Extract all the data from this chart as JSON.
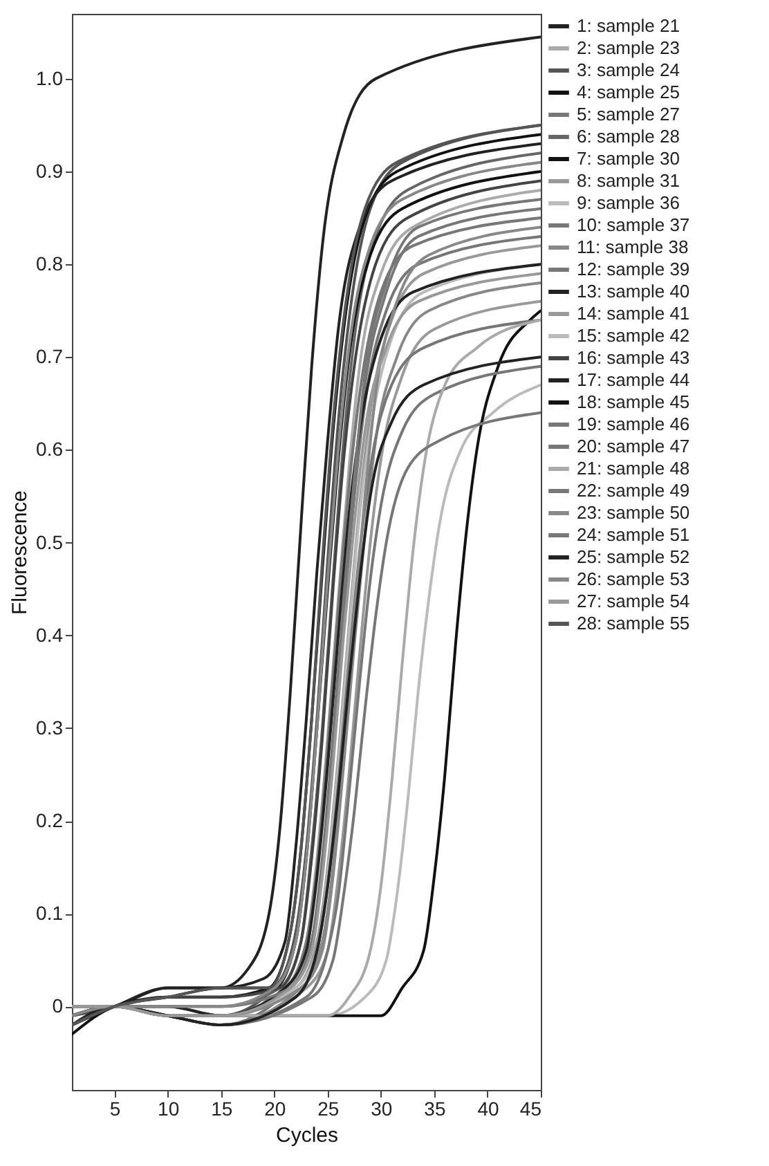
{
  "chart_data": {
    "type": "line",
    "xlabel": "Cycles",
    "ylabel": "Fluorescence",
    "xlim": [
      1,
      45
    ],
    "ylim": [
      -0.09,
      1.07
    ],
    "xticks": [
      5,
      10,
      15,
      20,
      25,
      30,
      35,
      40,
      45
    ],
    "yticks": [
      0,
      0.1,
      0.2,
      0.3,
      0.4,
      0.5,
      0.6,
      0.7,
      0.8,
      0.9,
      {
        "value": 1,
        "label": "1.0"
      }
    ],
    "legend": "right",
    "series": [
      {
        "name": "1: sample 21",
        "color": "#222222",
        "x": [
          1,
          5,
          10,
          15,
          17.5,
          19.5,
          20.5,
          21.5,
          22.5,
          23.5,
          24.5,
          26.5,
          29.5,
          45
        ],
        "values": [
          -0.01,
          0,
          0.02,
          0.02,
          0.04,
          0.1,
          0.19,
          0.34,
          0.52,
          0.69,
          0.82,
          0.94,
          1.0,
          1.045
        ]
      },
      {
        "name": "2: sample 23",
        "color": "#aaaaaa",
        "x": [
          1,
          5,
          10,
          15,
          21,
          23,
          24,
          25,
          26,
          27,
          28,
          30,
          33,
          45
        ],
        "values": [
          -0.01,
          0,
          0.01,
          0.01,
          0.02,
          0.07,
          0.16,
          0.29,
          0.44,
          0.58,
          0.69,
          0.79,
          0.84,
          0.88
        ]
      },
      {
        "name": "3: sample 24",
        "color": "#555555",
        "x": [
          1,
          5,
          10,
          15,
          20,
          22,
          23,
          24,
          25,
          26,
          27,
          29,
          32,
          45
        ],
        "values": [
          0,
          0,
          -0.01,
          -0.01,
          0.02,
          0.08,
          0.17,
          0.31,
          0.48,
          0.63,
          0.74,
          0.86,
          0.91,
          0.95
        ]
      },
      {
        "name": "4: sample 25",
        "color": "#111111",
        "x": [
          1,
          5,
          10,
          15,
          19.5,
          21.5,
          22.5,
          23.5,
          24.5,
          25.5,
          26.5,
          28.5,
          31.5,
          45
        ],
        "values": [
          -0.02,
          0,
          0.01,
          0.01,
          0.02,
          0.08,
          0.17,
          0.31,
          0.47,
          0.62,
          0.73,
          0.85,
          0.9,
          0.94
        ]
      },
      {
        "name": "5: sample 27",
        "color": "#777777",
        "x": [
          1,
          5,
          10,
          15,
          21.5,
          23.5,
          24.5,
          25.5,
          26.5,
          27.5,
          28.5,
          30.5,
          33.5,
          45
        ],
        "values": [
          0,
          0,
          -0.01,
          -0.02,
          0.02,
          0.07,
          0.15,
          0.28,
          0.43,
          0.57,
          0.67,
          0.77,
          0.83,
          0.86
        ]
      },
      {
        "name": "6: sample 28",
        "color": "#666666",
        "x": [
          1,
          5,
          10,
          15,
          20.5,
          22.5,
          23.5,
          24.5,
          25.5,
          26.5,
          27.5,
          29.5,
          32.5,
          45
        ],
        "values": [
          -0.01,
          0,
          0,
          0,
          0.02,
          0.07,
          0.17,
          0.3,
          0.46,
          0.61,
          0.72,
          0.83,
          0.88,
          0.92
        ]
      },
      {
        "name": "7: sample 30",
        "color": "#111111",
        "x": [
          1,
          5,
          10,
          15,
          20,
          22,
          23,
          24,
          25,
          26,
          27,
          29,
          32,
          45
        ],
        "values": [
          -0.03,
          0,
          0.01,
          0.02,
          0.02,
          0.07,
          0.16,
          0.3,
          0.45,
          0.59,
          0.7,
          0.81,
          0.86,
          0.9
        ]
      },
      {
        "name": "8: sample 31",
        "color": "#999999",
        "x": [
          1,
          5,
          10,
          15,
          22,
          24,
          25,
          26,
          27,
          28,
          29,
          31,
          34,
          45
        ],
        "values": [
          0,
          0,
          -0.01,
          -0.01,
          0.02,
          0.07,
          0.15,
          0.27,
          0.41,
          0.54,
          0.64,
          0.74,
          0.79,
          0.82
        ]
      },
      {
        "name": "9: sample 36",
        "color": "#bbbbbb",
        "x": [
          1,
          5,
          10,
          15,
          20,
          25,
          28.5,
          30.5,
          31.5,
          32.5,
          33.5,
          34.5,
          35.5,
          37.5,
          40.5,
          45
        ],
        "values": [
          0,
          0,
          -0.01,
          -0.01,
          -0.01,
          -0.01,
          0.01,
          0.05,
          0.12,
          0.22,
          0.34,
          0.44,
          0.52,
          0.6,
          0.64,
          0.67
        ]
      },
      {
        "name": "10: sample 37",
        "color": "#777777",
        "x": [
          1,
          5,
          10,
          15,
          21,
          23,
          24,
          25,
          26,
          27,
          28,
          30,
          33,
          45
        ],
        "values": [
          -0.01,
          0,
          0,
          -0.01,
          0.02,
          0.07,
          0.15,
          0.28,
          0.43,
          0.56,
          0.66,
          0.77,
          0.82,
          0.85
        ]
      },
      {
        "name": "11: sample 38",
        "color": "#888888",
        "x": [
          1,
          5,
          10,
          15,
          22.5,
          24.5,
          25.5,
          26.5,
          27.5,
          28.5,
          29.5,
          31.5,
          34.5,
          45
        ],
        "values": [
          0,
          0,
          -0.01,
          -0.02,
          0.02,
          0.06,
          0.14,
          0.26,
          0.39,
          0.51,
          0.61,
          0.7,
          0.75,
          0.78
        ]
      },
      {
        "name": "12: sample 39",
        "color": "#777777",
        "x": [
          1,
          5,
          10,
          15,
          21.5,
          23.5,
          24.5,
          25.5,
          26.5,
          27.5,
          28.5,
          30.5,
          33.5,
          45
        ],
        "values": [
          -0.01,
          0,
          0,
          -0.01,
          0.02,
          0.07,
          0.15,
          0.27,
          0.42,
          0.55,
          0.65,
          0.75,
          0.8,
          0.83
        ]
      },
      {
        "name": "13: sample 40",
        "color": "#222222",
        "x": [
          1,
          5,
          10,
          15,
          19,
          21,
          22,
          23,
          24,
          25,
          26,
          28,
          31,
          45
        ],
        "values": [
          -0.02,
          0,
          0.02,
          0.02,
          0.03,
          0.07,
          0.17,
          0.31,
          0.47,
          0.61,
          0.73,
          0.84,
          0.89,
          0.93
        ]
      },
      {
        "name": "14: sample 41",
        "color": "#999999",
        "x": [
          1,
          5,
          10,
          15,
          23,
          25,
          26,
          27,
          28,
          29,
          30,
          32,
          35,
          45
        ],
        "values": [
          0,
          0,
          -0.01,
          -0.02,
          0.02,
          0.06,
          0.14,
          0.25,
          0.38,
          0.5,
          0.59,
          0.68,
          0.73,
          0.76
        ]
      },
      {
        "name": "15: sample 42",
        "color": "#bbbbbb",
        "x": [
          1,
          5,
          10,
          15,
          22,
          24,
          25,
          26,
          27,
          28,
          29,
          31,
          34,
          45
        ],
        "values": [
          0,
          0,
          -0.01,
          -0.01,
          0.02,
          0.06,
          0.14,
          0.26,
          0.4,
          0.53,
          0.62,
          0.72,
          0.77,
          0.8
        ]
      },
      {
        "name": "16: sample 43",
        "color": "#444444",
        "x": [
          1,
          5,
          10,
          15,
          20.5,
          22.5,
          23.5,
          24.5,
          25.5,
          26.5,
          27.5,
          29.5,
          32.5,
          45
        ],
        "values": [
          -0.01,
          0,
          0.01,
          0.01,
          0.02,
          0.07,
          0.16,
          0.29,
          0.45,
          0.59,
          0.69,
          0.8,
          0.85,
          0.89
        ]
      },
      {
        "name": "17: sample 44",
        "color": "#222222",
        "x": [
          1,
          5,
          10,
          15,
          21,
          23,
          24,
          25,
          26,
          27,
          28,
          30,
          33,
          45
        ],
        "values": [
          -0.02,
          0,
          0,
          -0.01,
          0.02,
          0.06,
          0.14,
          0.26,
          0.4,
          0.53,
          0.62,
          0.72,
          0.77,
          0.8
        ]
      },
      {
        "name": "18: sample 45",
        "color": "#111111",
        "x": [
          1,
          5,
          10,
          15,
          20,
          25,
          30,
          32,
          34,
          35,
          36,
          37,
          38,
          39,
          41,
          44,
          45
        ],
        "values": [
          -0.01,
          0,
          -0.01,
          -0.01,
          -0.01,
          -0.01,
          -0.01,
          0.02,
          0.06,
          0.14,
          0.25,
          0.39,
          0.51,
          0.6,
          0.69,
          0.74,
          0.75
        ]
      },
      {
        "name": "19: sample 46",
        "color": "#777777",
        "x": [
          1,
          5,
          10,
          15,
          22,
          24,
          25,
          26,
          27,
          28,
          29,
          31,
          34,
          45
        ],
        "values": [
          0,
          0,
          -0.01,
          -0.02,
          0.01,
          0.06,
          0.13,
          0.24,
          0.37,
          0.49,
          0.58,
          0.67,
          0.71,
          0.74
        ]
      },
      {
        "name": "20: sample 47",
        "color": "#777777",
        "x": [
          1,
          5,
          10,
          15,
          23,
          25,
          26,
          27,
          28,
          29,
          30,
          32,
          35,
          45
        ],
        "values": [
          0,
          0,
          -0.01,
          -0.02,
          0.01,
          0.06,
          0.12,
          0.23,
          0.35,
          0.46,
          0.54,
          0.62,
          0.66,
          0.69
        ]
      },
      {
        "name": "21: sample 48",
        "color": "#aaaaaa",
        "x": [
          1,
          5,
          10,
          15,
          20,
          25,
          27,
          29,
          30,
          31,
          32,
          33,
          34,
          36,
          39,
          45
        ],
        "values": [
          0,
          0,
          -0.01,
          -0.01,
          -0.01,
          -0.01,
          0.01,
          0.06,
          0.13,
          0.24,
          0.37,
          0.49,
          0.58,
          0.67,
          0.71,
          0.74
        ]
      },
      {
        "name": "22: sample 49",
        "color": "#777777",
        "x": [
          1,
          5,
          10,
          15,
          21.5,
          23.5,
          24.5,
          25.5,
          26.5,
          27.5,
          28.5,
          30.5,
          33.5,
          45
        ],
        "values": [
          -0.01,
          0,
          0,
          0,
          0.02,
          0.07,
          0.16,
          0.29,
          0.44,
          0.57,
          0.68,
          0.78,
          0.84,
          0.87
        ]
      },
      {
        "name": "23: sample 50",
        "color": "#888888",
        "x": [
          1,
          5,
          10,
          15,
          22.5,
          24.5,
          25.5,
          26.5,
          27.5,
          28.5,
          29.5,
          31.5,
          34.5,
          45
        ],
        "values": [
          0,
          0,
          -0.01,
          -0.01,
          0.02,
          0.07,
          0.15,
          0.28,
          0.42,
          0.55,
          0.66,
          0.76,
          0.81,
          0.84
        ]
      },
      {
        "name": "24: sample 51",
        "color": "#777777",
        "x": [
          1,
          5,
          10,
          15,
          23.5,
          25.5,
          26.5,
          27.5,
          28.5,
          29.5,
          30.5,
          32.5,
          35.5,
          45
        ],
        "values": [
          0,
          0,
          -0.01,
          -0.02,
          0.01,
          0.05,
          0.12,
          0.21,
          0.32,
          0.42,
          0.5,
          0.58,
          0.61,
          0.64
        ]
      },
      {
        "name": "25: sample 52",
        "color": "#222222",
        "x": [
          1,
          5,
          10,
          15,
          22,
          24,
          25,
          26,
          27,
          28,
          29,
          31,
          34,
          45
        ],
        "values": [
          -0.01,
          0,
          -0.01,
          -0.02,
          0.01,
          0.06,
          0.13,
          0.23,
          0.35,
          0.46,
          0.55,
          0.63,
          0.67,
          0.7
        ]
      },
      {
        "name": "26: sample 53",
        "color": "#888888",
        "x": [
          1,
          5,
          10,
          15,
          20,
          22,
          23,
          24,
          25,
          26,
          27,
          29,
          32,
          45
        ],
        "values": [
          -0.01,
          0,
          0,
          0,
          0.02,
          0.07,
          0.16,
          0.3,
          0.46,
          0.6,
          0.71,
          0.82,
          0.87,
          0.91
        ]
      },
      {
        "name": "27: sample 54",
        "color": "#999999",
        "x": [
          1,
          5,
          10,
          15,
          21.5,
          23.5,
          24.5,
          25.5,
          26.5,
          27.5,
          28.5,
          30.5,
          33.5,
          45
        ],
        "values": [
          0,
          0,
          -0.01,
          -0.01,
          0.02,
          0.06,
          0.14,
          0.26,
          0.4,
          0.52,
          0.62,
          0.71,
          0.76,
          0.79
        ]
      },
      {
        "name": "28: sample 55",
        "color": "#555555",
        "x": [
          1,
          5,
          10,
          15,
          19.5,
          21.5,
          22.5,
          23.5,
          24.5,
          25.5,
          26.5,
          28.5,
          31.5,
          45
        ],
        "values": [
          -0.02,
          0,
          0.01,
          0.02,
          0.02,
          0.08,
          0.17,
          0.31,
          0.48,
          0.63,
          0.74,
          0.86,
          0.91,
          0.95
        ]
      }
    ]
  }
}
